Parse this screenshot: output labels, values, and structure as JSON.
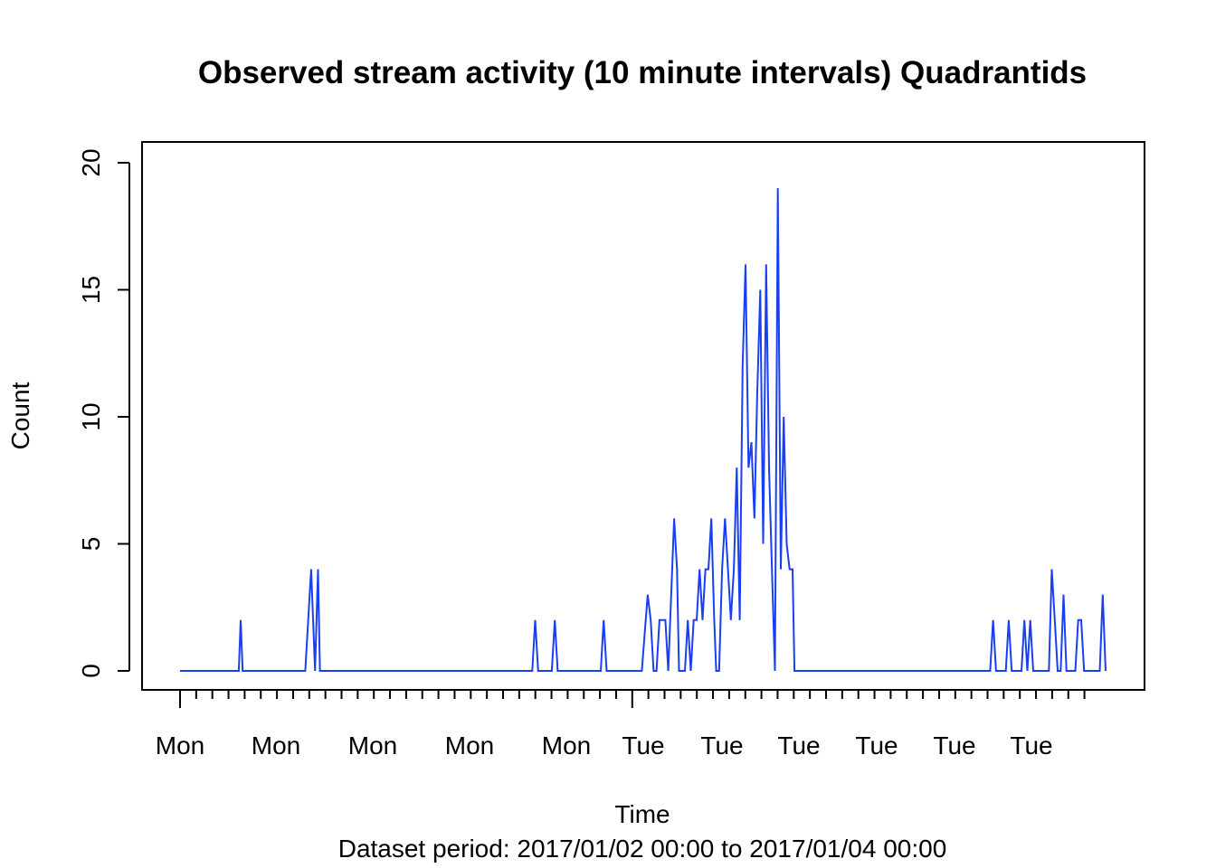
{
  "chart_data": {
    "type": "line",
    "title": "Observed stream activity (10 minute intervals) Quadrantids",
    "xlabel": "Time",
    "subtitle": "Dataset period: 2017/01/02 00:00 to 2017/01/04 00:00",
    "ylabel": "Count",
    "ylim": [
      0,
      20
    ],
    "y_ticks": [
      "0",
      "5",
      "10",
      "15",
      "20"
    ],
    "x_tick_labels": [
      "Mon",
      "Mon",
      "Mon",
      "Mon",
      "Mon",
      "Tue",
      "Tue",
      "Tue",
      "Tue",
      "Tue",
      "Tue"
    ],
    "grid": false,
    "series": [
      {
        "color": "#1a3ff0",
        "points": [
          [
            0,
            0
          ],
          [
            60,
            0
          ],
          [
            62,
            2
          ],
          [
            64,
            0
          ],
          [
            128,
            0
          ],
          [
            134,
            4
          ],
          [
            138,
            0
          ],
          [
            141,
            4
          ],
          [
            143,
            0
          ],
          [
            360,
            0
          ],
          [
            363,
            2
          ],
          [
            366,
            0
          ],
          [
            380,
            0
          ],
          [
            383,
            2
          ],
          [
            386,
            0
          ],
          [
            430,
            0
          ],
          [
            433,
            2
          ],
          [
            436,
            0
          ],
          [
            472,
            0
          ],
          [
            476,
            2
          ],
          [
            478,
            3
          ],
          [
            481,
            2
          ],
          [
            484,
            0
          ],
          [
            487,
            0
          ],
          [
            490,
            2
          ],
          [
            496,
            2
          ],
          [
            499,
            0
          ],
          [
            505,
            6
          ],
          [
            508,
            4
          ],
          [
            510,
            0
          ],
          [
            516,
            0
          ],
          [
            519,
            2
          ],
          [
            522,
            0
          ],
          [
            525,
            2
          ],
          [
            528,
            2
          ],
          [
            531,
            4
          ],
          [
            534,
            2
          ],
          [
            537,
            4
          ],
          [
            540,
            4
          ],
          [
            543,
            6
          ],
          [
            546,
            2
          ],
          [
            548,
            0
          ],
          [
            551,
            0
          ],
          [
            554,
            4
          ],
          [
            557,
            6
          ],
          [
            560,
            4
          ],
          [
            563,
            2
          ],
          [
            566,
            4
          ],
          [
            569,
            8
          ],
          [
            572,
            2
          ],
          [
            575,
            12
          ],
          [
            578,
            16
          ],
          [
            581,
            8
          ],
          [
            584,
            9
          ],
          [
            587,
            6
          ],
          [
            590,
            11
          ],
          [
            593,
            15
          ],
          [
            596,
            5
          ],
          [
            599,
            16
          ],
          [
            602,
            8
          ],
          [
            605,
            4
          ],
          [
            608,
            0
          ],
          [
            611,
            19
          ],
          [
            614,
            4
          ],
          [
            617,
            10
          ],
          [
            620,
            5
          ],
          [
            623,
            4
          ],
          [
            626,
            4
          ],
          [
            628,
            0
          ],
          [
            828,
            0
          ],
          [
            831,
            2
          ],
          [
            834,
            0
          ],
          [
            844,
            0
          ],
          [
            847,
            2
          ],
          [
            850,
            0
          ],
          [
            860,
            0
          ],
          [
            863,
            2
          ],
          [
            866,
            0
          ],
          [
            869,
            2
          ],
          [
            872,
            0
          ],
          [
            888,
            0
          ],
          [
            891,
            4
          ],
          [
            894,
            2
          ],
          [
            897,
            0
          ],
          [
            900,
            0
          ],
          [
            903,
            3
          ],
          [
            906,
            0
          ],
          [
            915,
            0
          ],
          [
            918,
            2
          ],
          [
            921,
            2
          ],
          [
            924,
            0
          ],
          [
            940,
            0
          ],
          [
            943,
            3
          ],
          [
            946,
            0
          ]
        ]
      }
    ]
  }
}
